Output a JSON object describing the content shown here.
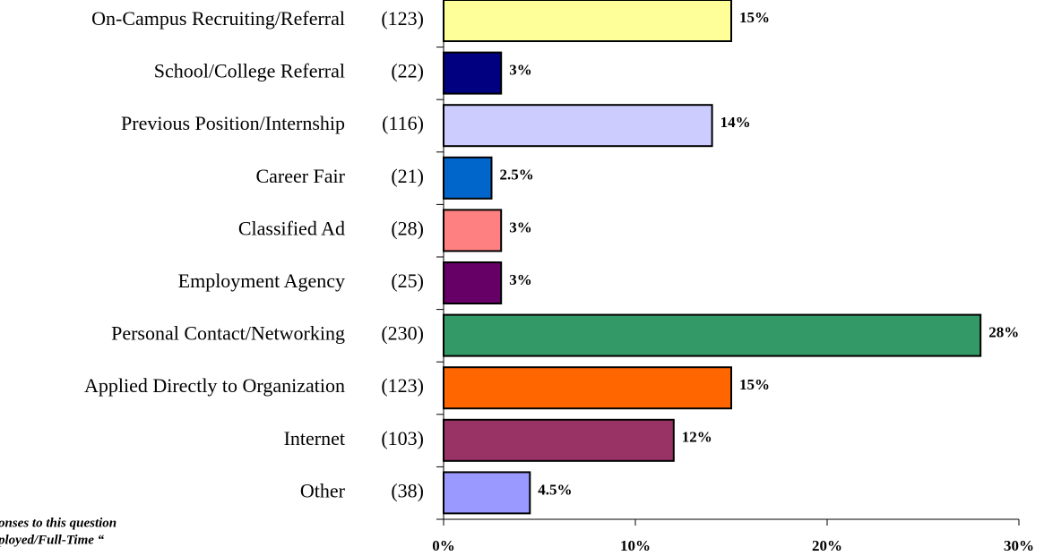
{
  "chart_data": {
    "type": "barh",
    "categories": [
      "On-Campus Recruiting/Referral",
      "School/College Referral",
      "Previous Position/Internship",
      "Career Fair",
      "Classified Ad",
      "Employment Agency",
      "Personal Contact/Networking",
      "Applied Directly to Organization",
      "Internet",
      "Other"
    ],
    "counts": [
      "(123)",
      "(22)",
      "(116)",
      "(21)",
      "(28)",
      "(25)",
      "(230)",
      "(123)",
      "(103)",
      "(38)"
    ],
    "values": [
      15,
      3,
      14,
      2.5,
      3,
      3,
      28,
      15,
      12,
      4.5
    ],
    "value_labels": [
      "15%",
      "3%",
      "14%",
      "2.5%",
      "3%",
      "3%",
      "28%",
      "15%",
      "12%",
      "4.5%"
    ],
    "colors": [
      "#FFFF99",
      "#000080",
      "#CCCCFF",
      "#0066CC",
      "#FF8080",
      "#660066",
      "#339966",
      "#FF6600",
      "#993366",
      "#9999FF"
    ],
    "xlim": [
      0,
      30
    ],
    "xticks": [
      {
        "value": 0,
        "label": "0%"
      },
      {
        "value": 10,
        "label": "10%"
      },
      {
        "value": 20,
        "label": "20%"
      },
      {
        "value": 30,
        "label": "30%"
      }
    ],
    "annotations": [
      "onses to this question",
      "ployed/Full-Time “"
    ]
  }
}
